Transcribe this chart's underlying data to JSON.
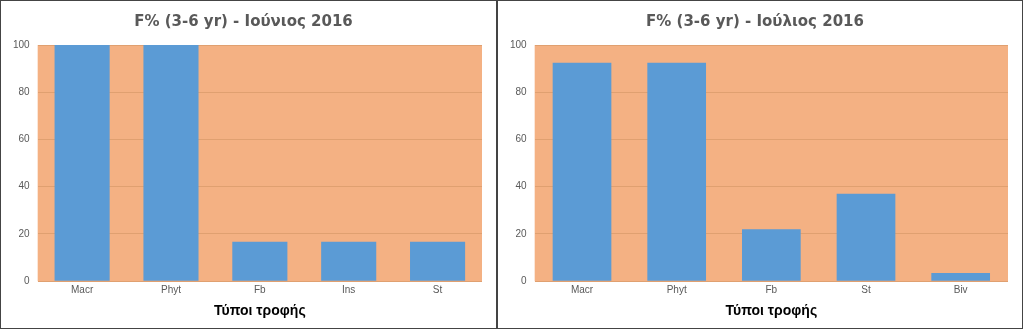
{
  "chart_data": [
    {
      "type": "bar",
      "title": "F% (3-6 yr) - Ιούνιος 2016",
      "xlabel": "Τύποι τροφής",
      "categories": [
        "Macr",
        "Phyt",
        "Fb",
        "Ins",
        "St"
      ],
      "values": [
        100,
        100,
        16.7,
        16.7,
        16.7
      ],
      "color": "#5b9bd5",
      "ylim": [
        0,
        100
      ],
      "yticks": [
        0,
        20,
        40,
        60,
        80,
        100
      ],
      "grid": "y"
    },
    {
      "type": "bar",
      "title": "F% (3-6 yr) - Ιούλιος 2016",
      "xlabel": "Τύποι τροφής",
      "categories": [
        "Macr",
        "Phyt",
        "Fb",
        "St",
        "Biv"
      ],
      "values": [
        92.5,
        92.5,
        22,
        37,
        3.5
      ],
      "color": "#5b9bd5",
      "ylim": [
        0,
        100
      ],
      "yticks": [
        0,
        20,
        40,
        60,
        80,
        100
      ],
      "grid": "y"
    }
  ]
}
